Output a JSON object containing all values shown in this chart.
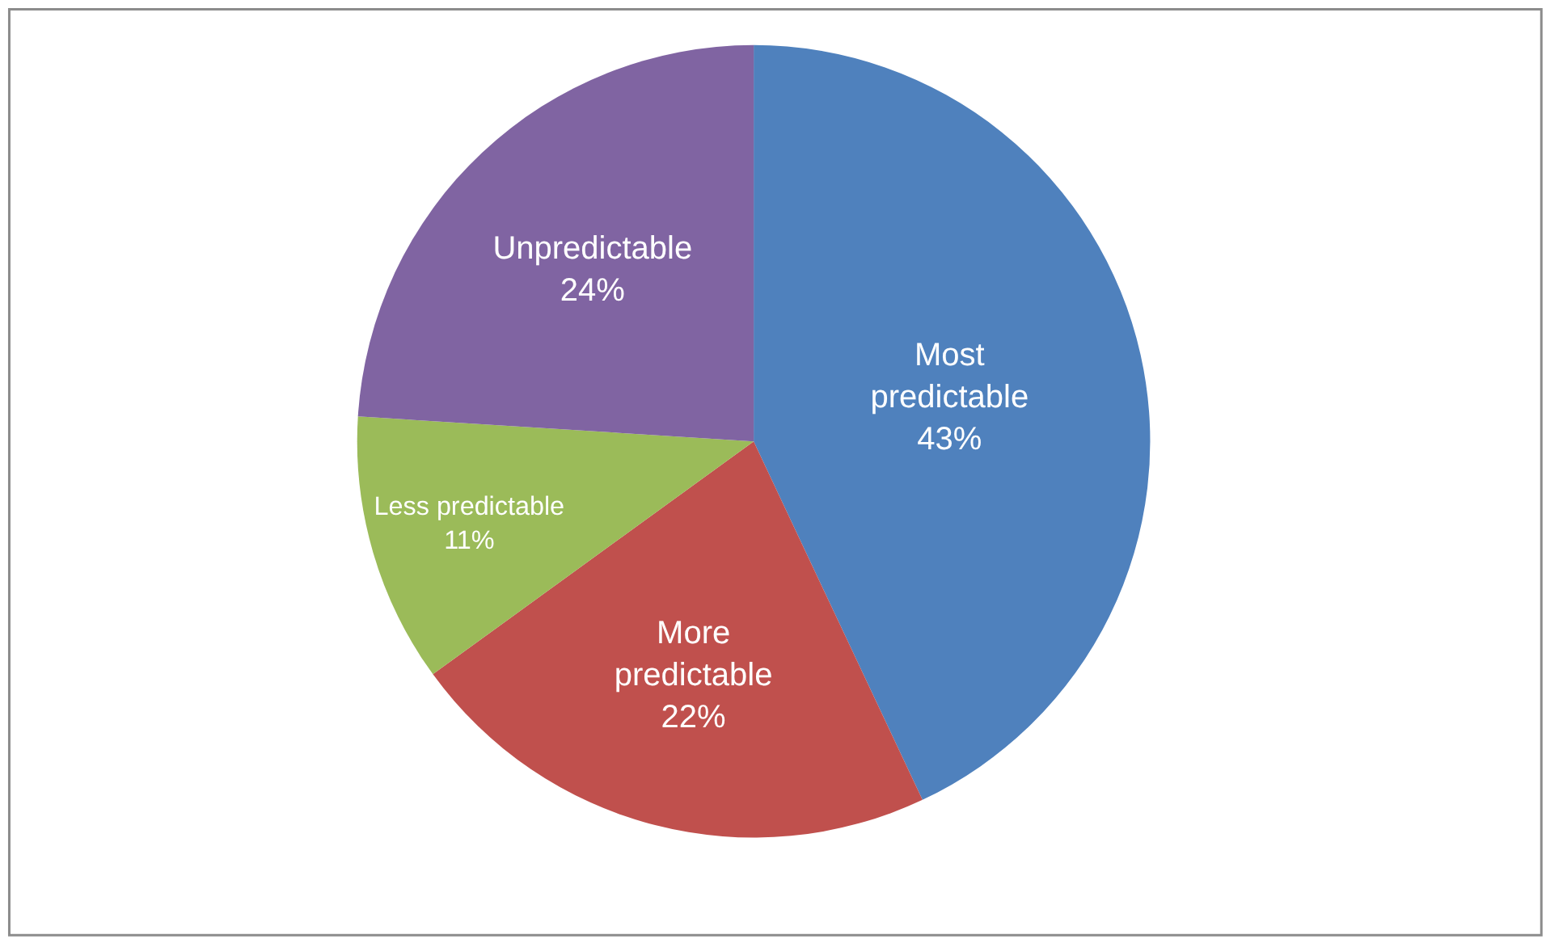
{
  "chart_data": {
    "type": "pie",
    "categories": [
      "Most predictable",
      "More predictable",
      "Less predictable",
      "Unpredictable"
    ],
    "values": [
      43,
      22,
      11,
      24
    ],
    "value_labels": [
      "43%",
      "22%",
      "11%",
      "24%"
    ],
    "colors": [
      "#4f81bd",
      "#c0504d",
      "#9bbb59",
      "#8064a2"
    ],
    "legend": false
  }
}
